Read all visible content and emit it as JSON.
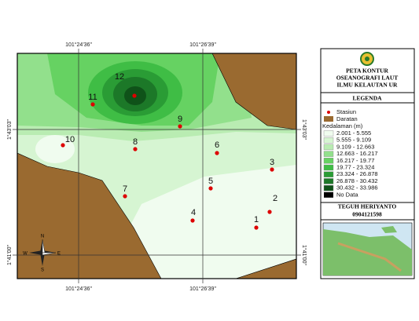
{
  "map": {
    "coordinates": {
      "top": [
        "101°24'36\"",
        "101°26'39\""
      ],
      "bottom": [
        "101°24'36\"",
        "101°26'39\""
      ],
      "left": [
        "1°43'03\"",
        "1°41'00\""
      ],
      "right": [
        "1°43'03\"",
        "1°41'00\""
      ]
    },
    "stations": [
      "1",
      "2",
      "3",
      "4",
      "5",
      "6",
      "7",
      "8",
      "9",
      "10",
      "11",
      "12"
    ],
    "compass": {
      "north": "N",
      "south": "S",
      "east": "E",
      "west": "W"
    }
  },
  "legend": {
    "title": [
      "PETA KONTUR",
      "OSEANOGRAFI LAUT",
      "ILMU KELAUTAN UR"
    ],
    "heading": "LEGENDA",
    "station": "Stasiun",
    "land": "Daratan",
    "depth_title": "Kedalaman (m)",
    "depth_classes": [
      {
        "label": "2.001 - 5.555",
        "color": "#f0fcef"
      },
      {
        "label": "5.555 - 9.109",
        "color": "#d6f5d2"
      },
      {
        "label": "9.109 - 12.663",
        "color": "#b9ecb2"
      },
      {
        "label": "12.663 - 16.217",
        "color": "#92e08c"
      },
      {
        "label": "16.217 - 19.77",
        "color": "#66d262"
      },
      {
        "label": "19.77 - 23.324",
        "color": "#3fbd45"
      },
      {
        "label": "23.324 - 26.878",
        "color": "#2a9c35"
      },
      {
        "label": "26.878 - 30.432",
        "color": "#1c7828"
      },
      {
        "label": "30.432 - 33.986",
        "color": "#0f5219"
      }
    ],
    "no_data": "No Data",
    "author": "TEGUH HERIYANTO",
    "id": "0904121598"
  }
}
